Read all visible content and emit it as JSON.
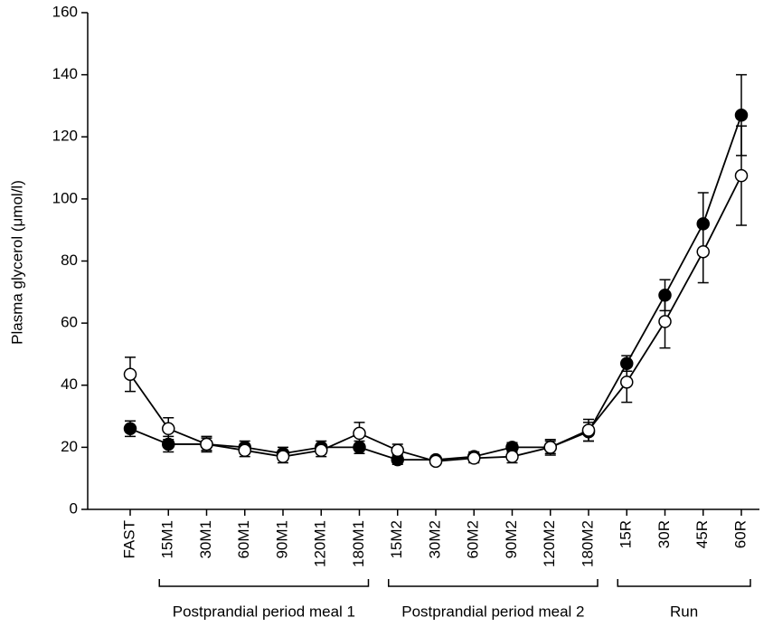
{
  "chart_data": {
    "type": "line",
    "y_label": "Plasma glycerol (μmol/l)",
    "categories": [
      "FAST",
      "15M1",
      "30M1",
      "60M1",
      "90M1",
      "120M1",
      "180M1",
      "15M2",
      "30M2",
      "60M2",
      "90M2",
      "120M2",
      "180M2",
      "15R",
      "30R",
      "45R",
      "60R"
    ],
    "series": [
      {
        "color": "#000000",
        "marker_fill": "#000000",
        "values": [
          26,
          21,
          21,
          20,
          18,
          20,
          20,
          16,
          16,
          17,
          20,
          20,
          25,
          47,
          69,
          92,
          127
        ],
        "errors": [
          2.5,
          2.5,
          2,
          2,
          2,
          2,
          2,
          1.5,
          1,
          1.5,
          1.5,
          2,
          3,
          2.5,
          5,
          10,
          13
        ]
      },
      {
        "color": "#000000",
        "marker_fill": "#ffffff",
        "values": [
          43.5,
          26,
          21,
          19,
          17,
          19,
          24.5,
          19,
          15.5,
          16.5,
          17,
          20,
          25.5,
          41,
          60.5,
          83,
          107.5
        ],
        "errors": [
          5.5,
          3.5,
          2.5,
          2,
          2,
          2,
          3.5,
          2,
          1,
          1.5,
          2,
          2.5,
          3.5,
          6.5,
          8.5,
          10,
          16
        ]
      }
    ],
    "groups": [
      {
        "label": "Postprandial period meal 1"
      },
      {
        "label": "Postprandial period meal 2"
      },
      {
        "label": "Run"
      }
    ],
    "ylim": [
      0,
      160
    ],
    "yticks": [
      0,
      20,
      40,
      60,
      80,
      100,
      120,
      140,
      160
    ]
  }
}
